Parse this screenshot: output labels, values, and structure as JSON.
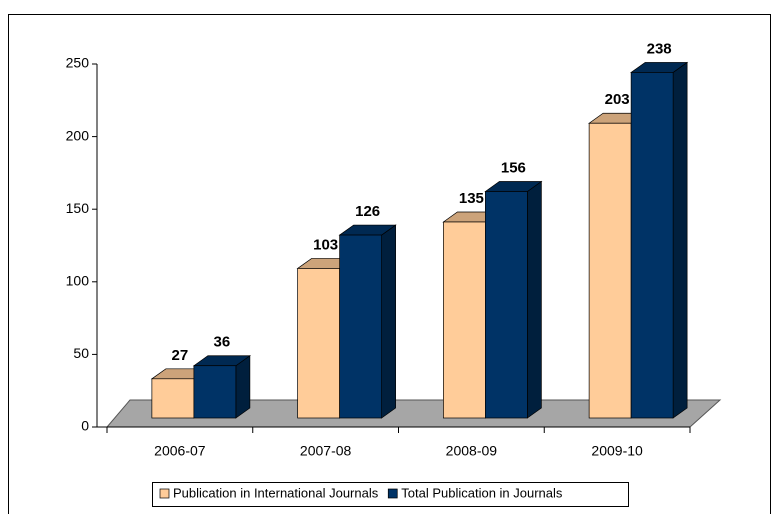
{
  "chart_data": {
    "type": "bar3d",
    "categories": [
      "2006-07",
      "2007-08",
      "2008-09",
      "2009-10"
    ],
    "series": [
      {
        "name": "Publication in International Journals",
        "color": "#FFCC99",
        "values": [
          27,
          103,
          135,
          203
        ]
      },
      {
        "name": "Total Publication in Journals",
        "color": "#003366",
        "values": [
          36,
          126,
          156,
          238
        ]
      }
    ],
    "ylim": [
      0,
      250
    ],
    "yticks": [
      0,
      50,
      100,
      150,
      200,
      250
    ],
    "legend": "bottom"
  }
}
